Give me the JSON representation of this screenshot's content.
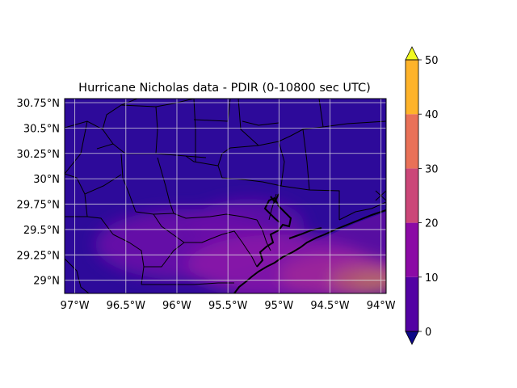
{
  "figure": {
    "title": "Hurricane Nicholas data - PDIR (0-10800 sec UTC)"
  },
  "map": {
    "extent_lon": [
      -97.1,
      -93.95
    ],
    "extent_lat": [
      28.87,
      30.79
    ],
    "gridlines": true,
    "x_ticks": [
      {
        "value": -97.0,
        "label": "97°W"
      },
      {
        "value": -96.5,
        "label": "96.5°W"
      },
      {
        "value": -96.0,
        "label": "96°W"
      },
      {
        "value": -95.5,
        "label": "95.5°W"
      },
      {
        "value": -95.0,
        "label": "95°W"
      },
      {
        "value": -94.5,
        "label": "94.5°W"
      },
      {
        "value": -94.0,
        "label": "94°W"
      }
    ],
    "y_ticks": [
      {
        "value": 30.75,
        "label": "30.75°N"
      },
      {
        "value": 30.5,
        "label": "30.5°N"
      },
      {
        "value": 30.25,
        "label": "30.25°N"
      },
      {
        "value": 30.0,
        "label": "30°N"
      },
      {
        "value": 29.75,
        "label": "29.75°N"
      },
      {
        "value": 29.5,
        "label": "29.5°N"
      },
      {
        "value": 29.25,
        "label": "29.25°N"
      },
      {
        "value": 29.0,
        "label": "29°N"
      }
    ],
    "background_color": "#2d0a9a",
    "precip_patches": [
      {
        "lon": -94.05,
        "lat": 28.97,
        "rx": 0.22,
        "ry": 0.09,
        "color": "#f8d020"
      },
      {
        "lon": -94.15,
        "lat": 29.0,
        "rx": 0.35,
        "ry": 0.14,
        "color": "#f0a030"
      },
      {
        "lon": -94.4,
        "lat": 29.05,
        "rx": 0.6,
        "ry": 0.22,
        "color": "#c8408a"
      },
      {
        "lon": -95.0,
        "lat": 29.15,
        "rx": 0.9,
        "ry": 0.3,
        "color": "#8a14a8"
      },
      {
        "lon": -95.9,
        "lat": 29.35,
        "rx": 0.9,
        "ry": 0.35,
        "color": "#6a0ca8"
      },
      {
        "lon": -95.3,
        "lat": 29.55,
        "rx": 0.55,
        "ry": 0.25,
        "color": "#5c0ca6"
      }
    ]
  },
  "colorbar": {
    "ticks": [
      "0",
      "10",
      "20",
      "30",
      "40",
      "50"
    ],
    "levels": [
      0,
      10,
      20,
      30,
      40,
      50
    ],
    "colors": [
      "#5302a3",
      "#8b0aa5",
      "#cb4778",
      "#e97158",
      "#feb32a"
    ],
    "under_color": "#0d0887",
    "over_color": "#f0f921"
  }
}
